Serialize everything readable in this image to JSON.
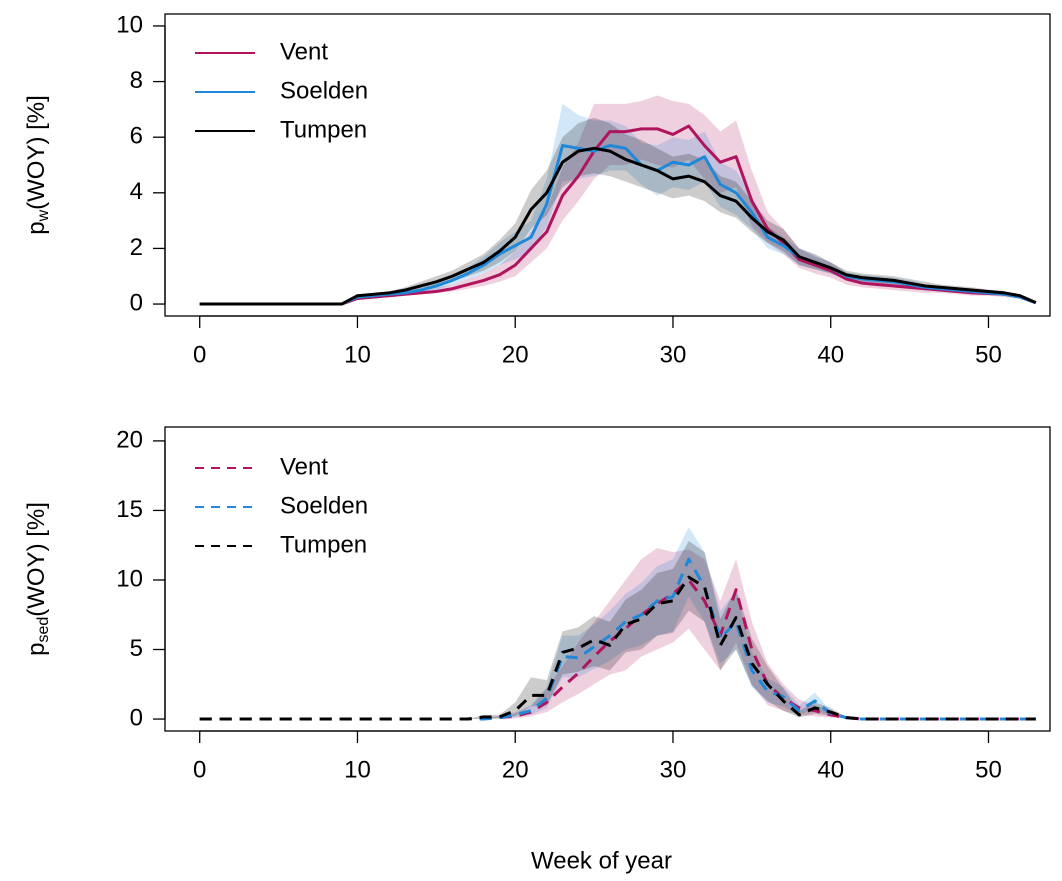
{
  "chart_data": [
    {
      "type": "line",
      "y_label": [
        "p",
        "w",
        "(WOY) [%]"
      ],
      "line_style": "solid",
      "legend": "topleft",
      "x": [
        0,
        1,
        2,
        3,
        4,
        5,
        6,
        7,
        8,
        9,
        10,
        11,
        12,
        13,
        14,
        15,
        16,
        17,
        18,
        19,
        20,
        21,
        22,
        23,
        24,
        25,
        26,
        27,
        28,
        29,
        30,
        31,
        32,
        33,
        34,
        35,
        36,
        37,
        38,
        39,
        40,
        41,
        42,
        43,
        44,
        45,
        46,
        47,
        48,
        49,
        50,
        51,
        52,
        53
      ],
      "xlim": [
        -2.2,
        53.9
      ],
      "xticks": [
        0,
        10,
        20,
        30,
        40,
        50
      ],
      "ylim": [
        -0.43,
        10.43
      ],
      "yticks": [
        0,
        2,
        4,
        6,
        8,
        10
      ],
      "series": [
        {
          "name": "Vent",
          "color": "#b0145f",
          "values": [
            0,
            0,
            0,
            0,
            0,
            0,
            0,
            0,
            0,
            0,
            0.2,
            0.25,
            0.3,
            0.35,
            0.4,
            0.45,
            0.55,
            0.7,
            0.85,
            1.05,
            1.4,
            2.0,
            2.6,
            3.9,
            4.6,
            5.5,
            6.2,
            6.2,
            6.3,
            6.3,
            6.1,
            6.4,
            5.7,
            5.1,
            5.3,
            3.7,
            2.7,
            2.2,
            1.6,
            1.4,
            1.2,
            0.9,
            0.75,
            0.7,
            0.65,
            0.6,
            0.55,
            0.5,
            0.45,
            0.4,
            0.38,
            0.35,
            0.25,
            0.05
          ],
          "lower": [
            0,
            0,
            0,
            0,
            0,
            0,
            0,
            0,
            0,
            0,
            0.15,
            0.2,
            0.25,
            0.3,
            0.35,
            0.4,
            0.45,
            0.55,
            0.65,
            0.8,
            1.0,
            1.5,
            2.0,
            3.0,
            3.7,
            4.5,
            5.0,
            5.0,
            5.2,
            5.0,
            4.9,
            5.2,
            4.5,
            4.0,
            4.2,
            2.8,
            2.2,
            1.8,
            1.3,
            1.1,
            0.95,
            0.7,
            0.6,
            0.55,
            0.5,
            0.45,
            0.4,
            0.4,
            0.35,
            0.3,
            0.3,
            0.25,
            0.2,
            0.03
          ],
          "upper": [
            0,
            0,
            0,
            0,
            0,
            0,
            0,
            0,
            0,
            0,
            0.3,
            0.35,
            0.4,
            0.45,
            0.5,
            0.6,
            0.7,
            0.9,
            1.1,
            1.4,
            1.9,
            2.6,
            3.4,
            4.9,
            5.8,
            7.2,
            7.2,
            7.2,
            7.3,
            7.5,
            7.3,
            7.2,
            6.8,
            6.2,
            6.6,
            4.8,
            3.3,
            2.7,
            2.0,
            1.7,
            1.5,
            1.1,
            0.95,
            0.9,
            0.85,
            0.75,
            0.7,
            0.65,
            0.6,
            0.55,
            0.5,
            0.45,
            0.35,
            0.08
          ]
        },
        {
          "name": "Soelden",
          "color": "#1f88d8",
          "values": [
            0,
            0,
            0,
            0,
            0,
            0,
            0,
            0,
            0,
            0,
            0.25,
            0.3,
            0.35,
            0.4,
            0.5,
            0.65,
            0.85,
            1.1,
            1.4,
            1.8,
            2.1,
            2.4,
            3.6,
            5.7,
            5.6,
            5.5,
            5.7,
            5.6,
            5.0,
            4.8,
            5.1,
            5.0,
            5.3,
            4.3,
            4.0,
            3.3,
            2.4,
            2.1,
            1.7,
            1.5,
            1.3,
            1.0,
            0.9,
            0.85,
            0.8,
            0.7,
            0.6,
            0.55,
            0.5,
            0.45,
            0.4,
            0.35,
            0.25,
            0.05
          ],
          "lower": [
            0,
            0,
            0,
            0,
            0,
            0,
            0,
            0,
            0,
            0,
            0.2,
            0.25,
            0.3,
            0.35,
            0.4,
            0.5,
            0.7,
            0.9,
            1.1,
            1.4,
            1.6,
            1.9,
            2.8,
            4.4,
            4.5,
            4.6,
            4.8,
            4.8,
            4.3,
            3.9,
            4.2,
            4.1,
            4.4,
            3.5,
            3.2,
            2.7,
            2.0,
            1.8,
            1.4,
            1.25,
            1.1,
            0.85,
            0.75,
            0.7,
            0.65,
            0.55,
            0.5,
            0.45,
            0.4,
            0.38,
            0.33,
            0.3,
            0.2,
            0.03
          ],
          "upper": [
            0,
            0,
            0,
            0,
            0,
            0,
            0,
            0,
            0,
            0,
            0.3,
            0.35,
            0.4,
            0.5,
            0.6,
            0.8,
            1.0,
            1.3,
            1.7,
            2.2,
            2.6,
            3.0,
            4.5,
            7.2,
            6.8,
            6.6,
            6.6,
            6.4,
            5.8,
            5.7,
            6.0,
            5.9,
            6.2,
            5.1,
            4.8,
            3.9,
            2.8,
            2.4,
            2.0,
            1.75,
            1.5,
            1.15,
            1.05,
            1.0,
            0.95,
            0.85,
            0.7,
            0.65,
            0.6,
            0.55,
            0.5,
            0.45,
            0.3,
            0.08
          ]
        },
        {
          "name": "Tumpen",
          "color": "#000000",
          "values": [
            0,
            0,
            0,
            0,
            0,
            0,
            0,
            0,
            0,
            0,
            0.3,
            0.35,
            0.4,
            0.5,
            0.65,
            0.8,
            1.0,
            1.25,
            1.5,
            1.9,
            2.4,
            3.4,
            4.0,
            5.1,
            5.5,
            5.6,
            5.5,
            5.2,
            5.0,
            4.8,
            4.5,
            4.6,
            4.4,
            3.9,
            3.7,
            3.1,
            2.6,
            2.3,
            1.7,
            1.5,
            1.3,
            1.05,
            0.95,
            0.9,
            0.85,
            0.75,
            0.65,
            0.6,
            0.55,
            0.5,
            0.45,
            0.4,
            0.3,
            0.05
          ],
          "lower": [
            0,
            0,
            0,
            0,
            0,
            0,
            0,
            0,
            0,
            0,
            0.25,
            0.3,
            0.35,
            0.4,
            0.5,
            0.65,
            0.8,
            1.0,
            1.2,
            1.5,
            1.9,
            2.7,
            3.2,
            4.2,
            4.6,
            4.7,
            4.6,
            4.4,
            4.2,
            4.0,
            3.8,
            3.9,
            3.7,
            3.3,
            3.1,
            2.6,
            2.2,
            1.9,
            1.4,
            1.25,
            1.1,
            0.9,
            0.8,
            0.75,
            0.7,
            0.6,
            0.55,
            0.5,
            0.45,
            0.4,
            0.38,
            0.33,
            0.25,
            0.03
          ],
          "upper": [
            0,
            0,
            0,
            0,
            0,
            0,
            0,
            0,
            0,
            0,
            0.35,
            0.4,
            0.45,
            0.6,
            0.8,
            1.0,
            1.2,
            1.5,
            1.8,
            2.3,
            2.9,
            4.1,
            4.8,
            6.0,
            6.5,
            6.7,
            6.5,
            6.1,
            5.9,
            5.6,
            5.3,
            5.4,
            5.2,
            4.6,
            4.4,
            3.7,
            3.0,
            2.7,
            2.0,
            1.8,
            1.5,
            1.2,
            1.1,
            1.05,
            1.0,
            0.9,
            0.8,
            0.7,
            0.65,
            0.6,
            0.52,
            0.47,
            0.35,
            0.08
          ]
        }
      ]
    },
    {
      "type": "line",
      "y_label": [
        "p",
        "sed",
        "(WOY) [%]"
      ],
      "x_label": "Week of year",
      "line_style": "dashed",
      "legend": "topleft",
      "x": [
        0,
        1,
        2,
        3,
        4,
        5,
        6,
        7,
        8,
        9,
        10,
        11,
        12,
        13,
        14,
        15,
        16,
        17,
        18,
        19,
        20,
        21,
        22,
        23,
        24,
        25,
        26,
        27,
        28,
        29,
        30,
        31,
        32,
        33,
        34,
        35,
        36,
        37,
        38,
        39,
        40,
        41,
        42,
        43,
        44,
        45,
        46,
        47,
        48,
        49,
        50,
        51,
        52,
        53
      ],
      "xlim": [
        -2.2,
        53.9
      ],
      "xticks": [
        0,
        10,
        20,
        30,
        40,
        50
      ],
      "ylim": [
        -0.86,
        21
      ],
      "yticks": [
        0,
        5,
        10,
        15,
        20
      ],
      "series": [
        {
          "name": "Vent",
          "color": "#b0145f",
          "values": [
            0,
            0,
            0,
            0,
            0,
            0,
            0,
            0,
            0,
            0,
            0,
            0,
            0,
            0,
            0,
            0,
            0,
            0,
            0.05,
            0.1,
            0.2,
            0.5,
            1.2,
            2.3,
            3.3,
            4.5,
            5.6,
            6.5,
            7.5,
            8.3,
            9.0,
            10.0,
            8.5,
            6.0,
            9.3,
            5.0,
            2.5,
            1.5,
            0.8,
            0.6,
            0.3,
            0.1,
            0,
            0,
            0,
            0,
            0,
            0,
            0,
            0,
            0,
            0,
            0,
            0
          ],
          "lower": [
            0,
            0,
            0,
            0,
            0,
            0,
            0,
            0,
            0,
            0,
            0,
            0,
            0,
            0,
            0,
            0,
            0,
            0,
            0,
            0.05,
            0.05,
            0.2,
            0.5,
            1.2,
            1.8,
            2.5,
            3.2,
            3.5,
            4.5,
            5.0,
            5.5,
            6.5,
            5.0,
            3.5,
            5.5,
            2.5,
            1.0,
            0.6,
            0.3,
            0.2,
            0.1,
            0.05,
            0,
            0,
            0,
            0,
            0,
            0,
            0,
            0,
            0,
            0,
            0,
            0
          ],
          "upper": [
            0,
            0,
            0,
            0,
            0,
            0,
            0,
            0,
            0,
            0,
            0,
            0,
            0,
            0,
            0,
            0,
            0,
            0,
            0.1,
            0.2,
            0.4,
            0.9,
            2.2,
            3.8,
            5.5,
            7.0,
            8.5,
            10.0,
            11.5,
            12.3,
            12.0,
            12.2,
            11.5,
            8.5,
            11.5,
            7.0,
            4.0,
            2.5,
            1.4,
            1.0,
            0.6,
            0.2,
            0,
            0,
            0,
            0,
            0,
            0,
            0,
            0,
            0,
            0,
            0,
            0
          ]
        },
        {
          "name": "Soelden",
          "color": "#1f88d8",
          "values": [
            0,
            0,
            0,
            0,
            0,
            0,
            0,
            0,
            0,
            0,
            0,
            0,
            0,
            0,
            0,
            0,
            0,
            0,
            0,
            0.1,
            0.3,
            0.6,
            1.5,
            4.5,
            4.4,
            5.2,
            6.0,
            7.0,
            7.5,
            8.5,
            8.8,
            11.5,
            9.5,
            5.8,
            7.0,
            3.5,
            2.0,
            1.6,
            0.6,
            1.3,
            0.4,
            0.1,
            0,
            0,
            0,
            0,
            0,
            0,
            0,
            0,
            0,
            0,
            0,
            0
          ],
          "lower": [
            0,
            0,
            0,
            0,
            0,
            0,
            0,
            0,
            0,
            0,
            0,
            0,
            0,
            0,
            0,
            0,
            0,
            0,
            0,
            0.05,
            0.15,
            0.3,
            0.8,
            3.0,
            3.0,
            3.6,
            4.2,
            5.0,
            5.3,
            6.0,
            6.3,
            8.8,
            7.0,
            4.0,
            5.0,
            2.3,
            1.2,
            0.9,
            0.3,
            0.7,
            0.2,
            0.05,
            0,
            0,
            0,
            0,
            0,
            0,
            0,
            0,
            0,
            0,
            0,
            0
          ],
          "upper": [
            0,
            0,
            0,
            0,
            0,
            0,
            0,
            0,
            0,
            0,
            0,
            0,
            0,
            0,
            0,
            0,
            0,
            0,
            0.05,
            0.2,
            0.5,
            1.0,
            2.3,
            6.0,
            6.0,
            6.8,
            7.8,
            9.0,
            9.8,
            11.0,
            11.5,
            13.8,
            12.0,
            7.8,
            9.2,
            4.8,
            2.9,
            2.3,
            1.0,
            1.9,
            0.6,
            0.15,
            0,
            0,
            0,
            0,
            0,
            0,
            0,
            0,
            0,
            0,
            0,
            0
          ]
        },
        {
          "name": "Tumpen",
          "color": "#000000",
          "values": [
            0,
            0,
            0,
            0,
            0,
            0,
            0,
            0,
            0,
            0,
            0,
            0,
            0,
            0,
            0,
            0,
            0,
            0,
            0.15,
            0.15,
            0.6,
            1.7,
            1.7,
            4.8,
            5.1,
            5.7,
            5.3,
            6.8,
            7.2,
            8.3,
            8.5,
            10.2,
            9.5,
            5.3,
            7.3,
            4.0,
            2.5,
            1.3,
            0.3,
            0.8,
            0.5,
            0.1,
            0,
            0,
            0,
            0,
            0,
            0,
            0,
            0,
            0,
            0,
            0,
            0
          ],
          "lower": [
            0,
            0,
            0,
            0,
            0,
            0,
            0,
            0,
            0,
            0,
            0,
            0,
            0,
            0,
            0,
            0,
            0,
            0,
            0.05,
            0.05,
            0.2,
            0.9,
            1.0,
            3.2,
            3.4,
            3.8,
            3.5,
            4.8,
            5.0,
            6.0,
            6.2,
            7.8,
            7.0,
            3.5,
            5.0,
            2.4,
            1.3,
            0.6,
            0.1,
            0.4,
            0.2,
            0.05,
            0,
            0,
            0,
            0,
            0,
            0,
            0,
            0,
            0,
            0,
            0,
            0
          ],
          "upper": [
            0,
            0,
            0,
            0,
            0,
            0,
            0,
            0,
            0,
            0,
            0,
            0,
            0,
            0,
            0,
            0,
            0,
            0,
            0.3,
            0.3,
            1.2,
            3.0,
            2.8,
            6.3,
            6.6,
            7.4,
            7.0,
            8.6,
            9.3,
            10.5,
            10.8,
            12.8,
            12.0,
            7.2,
            9.4,
            5.8,
            3.8,
            2.2,
            0.6,
            1.2,
            0.8,
            0.15,
            0,
            0,
            0,
            0,
            0,
            0,
            0,
            0,
            0,
            0,
            0,
            0
          ]
        }
      ]
    }
  ]
}
